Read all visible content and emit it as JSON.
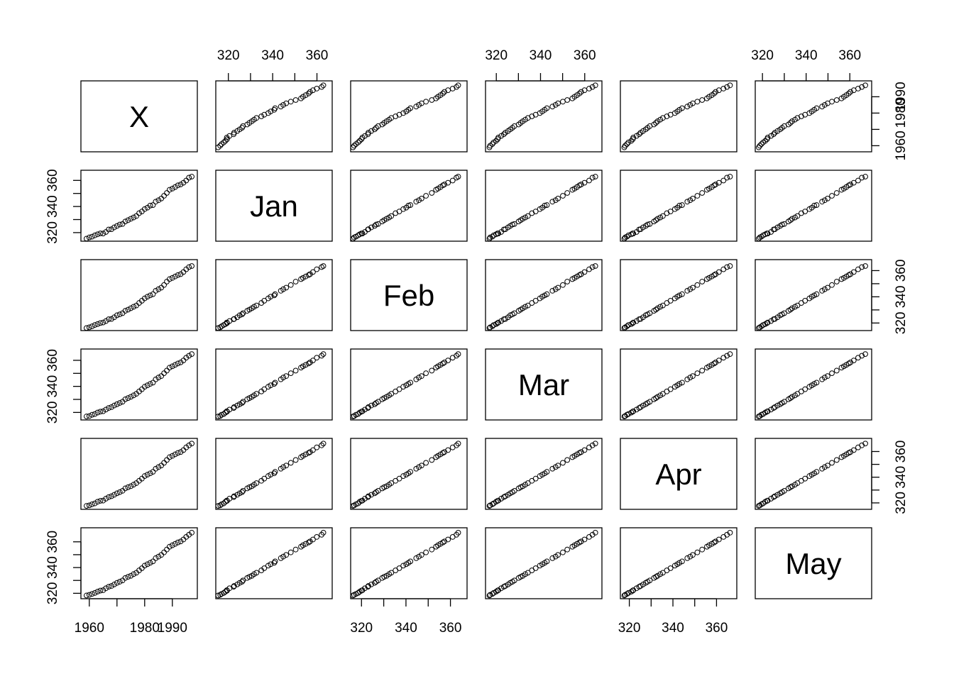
{
  "chart_data": {
    "type": "scatter",
    "kind": "scatterplot-matrix",
    "variables": [
      "X",
      "Jan",
      "Feb",
      "Mar",
      "Apr",
      "May"
    ],
    "axes": {
      "X": {
        "range": [
          1958,
          1998
        ],
        "ticks": [
          1960,
          1970,
          1980,
          1990
        ],
        "tick_labels": [
          "1960",
          "",
          "1980",
          "1990"
        ]
      },
      "Jan": {
        "range": [
          315.6,
          365.6
        ],
        "ticks": [
          320,
          330,
          340,
          350,
          360
        ],
        "tick_labels": [
          "320",
          "",
          "340",
          "",
          "360"
        ]
      },
      "Feb": {
        "range": [
          316.4,
          366.2
        ],
        "ticks": [
          320,
          330,
          340,
          350,
          360
        ],
        "tick_labels": [
          "320",
          "",
          "340",
          "",
          "360"
        ]
      },
      "Mar": {
        "range": [
          316.4,
          366.5
        ],
        "ticks": [
          320,
          330,
          340,
          350,
          360
        ],
        "tick_labels": [
          "320",
          "",
          "340",
          "",
          "360"
        ]
      },
      "Apr": {
        "range": [
          317.2,
          368.0
        ],
        "ticks": [
          320,
          330,
          340,
          350,
          360
        ],
        "tick_labels": [
          "320",
          "",
          "340",
          "",
          "360"
        ]
      },
      "May": {
        "range": [
          318.0,
          368.7
        ],
        "ticks": [
          320,
          330,
          340,
          350,
          360
        ],
        "tick_labels": [
          "320",
          "",
          "340",
          "",
          "360"
        ]
      }
    },
    "axis_sides": {
      "top": {
        "columns": [
          "Jan",
          "Mar",
          "Apr"
        ],
        "labeled": [
          true,
          true,
          false
        ]
      },
      "bottom": {
        "columns": [
          "X",
          "Feb",
          "Apr"
        ]
      },
      "left": {
        "rows": [
          "Jan",
          "Mar",
          "May"
        ]
      },
      "right": {
        "rows": [
          "X",
          "Feb",
          "Apr"
        ]
      }
    },
    "grid": false,
    "legend": "none",
    "series": [
      {
        "var": "X",
        "values": [
          1959,
          1960,
          1961,
          1962,
          1963,
          1964,
          1965,
          1966,
          1967,
          1968,
          1969,
          1970,
          1971,
          1972,
          1973,
          1974,
          1975,
          1976,
          1977,
          1978,
          1979,
          1980,
          1981,
          1982,
          1983,
          1984,
          1985,
          1986,
          1987,
          1988,
          1989,
          1990,
          1991,
          1992,
          1993,
          1994,
          1995,
          1996,
          1997
        ]
      },
      {
        "var": "Jan",
        "values": [
          315.4,
          316.3,
          316.9,
          317.9,
          318.7,
          319.4,
          319.3,
          320.5,
          322.4,
          322.6,
          324.0,
          325.1,
          326.2,
          326.6,
          328.5,
          329.5,
          330.6,
          331.6,
          332.7,
          334.9,
          336.2,
          338.0,
          339.1,
          340.7,
          341.1,
          343.7,
          344.8,
          346.1,
          348.2,
          350.4,
          352.8,
          353.7,
          354.9,
          356.2,
          356.9,
          358.2,
          359.9,
          362.1,
          362.9
        ]
      },
      {
        "var": "Feb",
        "values": [
          316.2,
          316.7,
          317.5,
          318.5,
          319.2,
          320.0,
          320.4,
          321.5,
          322.9,
          323.1,
          324.4,
          325.9,
          326.6,
          327.5,
          329.3,
          330.2,
          331.3,
          332.4,
          333.4,
          335.3,
          337.0,
          338.8,
          340.1,
          341.1,
          342.0,
          344.6,
          345.8,
          347.0,
          349.0,
          351.6,
          353.5,
          354.4,
          355.5,
          356.6,
          357.3,
          358.9,
          361.0,
          362.7,
          363.5
        ]
      },
      {
        "var": "Mar",
        "values": [
          316.9,
          317.2,
          318.2,
          318.8,
          319.9,
          320.6,
          320.9,
          322.2,
          323.4,
          324.1,
          325.3,
          326.3,
          327.3,
          328.2,
          330.1,
          331.0,
          332.0,
          333.1,
          334.3,
          336.1,
          337.8,
          339.7,
          340.8,
          341.9,
          342.9,
          345.4,
          346.8,
          347.9,
          350.1,
          352.1,
          354.4,
          355.4,
          356.5,
          357.6,
          358.4,
          359.9,
          362.0,
          363.5,
          364.8
        ]
      },
      {
        "var": "Apr",
        "values": [
          317.7,
          318.1,
          318.9,
          319.6,
          320.9,
          321.6,
          321.8,
          323.3,
          324.5,
          325.2,
          326.3,
          327.5,
          328.4,
          329.4,
          331.3,
          332.2,
          333.0,
          334.2,
          335.4,
          337.2,
          338.9,
          340.9,
          342.0,
          343.0,
          344.2,
          346.6,
          347.9,
          349.1,
          351.2,
          353.4,
          355.6,
          356.6,
          357.8,
          358.9,
          359.6,
          361.1,
          363.2,
          364.8,
          366.2
        ]
      },
      {
        "var": "May",
        "values": [
          318.3,
          318.8,
          319.5,
          320.3,
          321.3,
          322.1,
          322.4,
          323.9,
          325.1,
          325.7,
          326.9,
          328.1,
          329.0,
          330.0,
          331.9,
          332.8,
          333.6,
          334.9,
          336.0,
          337.8,
          339.5,
          341.5,
          342.6,
          343.7,
          344.8,
          347.3,
          348.5,
          349.8,
          351.8,
          354.0,
          356.2,
          357.3,
          358.4,
          359.5,
          360.3,
          361.8,
          363.8,
          365.5,
          367.1
        ]
      }
    ]
  }
}
